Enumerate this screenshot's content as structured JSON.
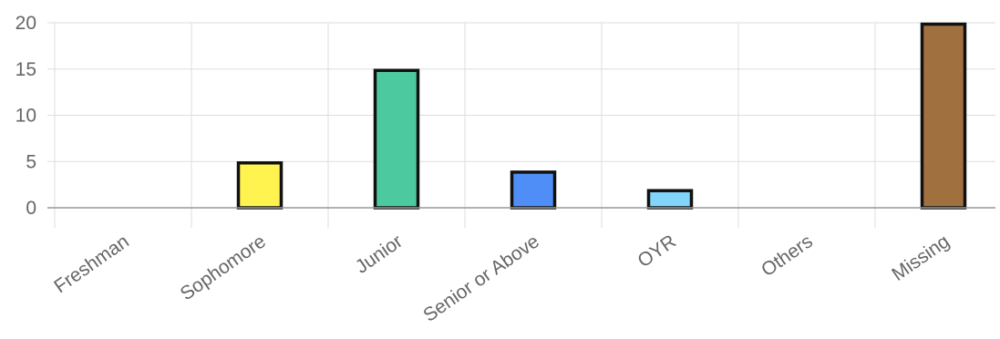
{
  "chart_data": {
    "type": "bar",
    "categories": [
      "Freshman",
      "Sophomore",
      "Junior",
      "Senior or Above",
      "OYR",
      "Others",
      "Missing"
    ],
    "values": [
      0,
      5,
      15,
      4,
      2,
      0,
      20
    ],
    "bar_colors": [
      "#cccccc",
      "#fff44f",
      "#4dc9a0",
      "#4f8ef7",
      "#81d4fa",
      "#cccccc",
      "#a0703f"
    ],
    "bar_border_color": "#111111",
    "ylim": [
      0,
      20
    ],
    "yticks": [
      0,
      5,
      10,
      15,
      20
    ],
    "grid": true,
    "legend": "none"
  }
}
